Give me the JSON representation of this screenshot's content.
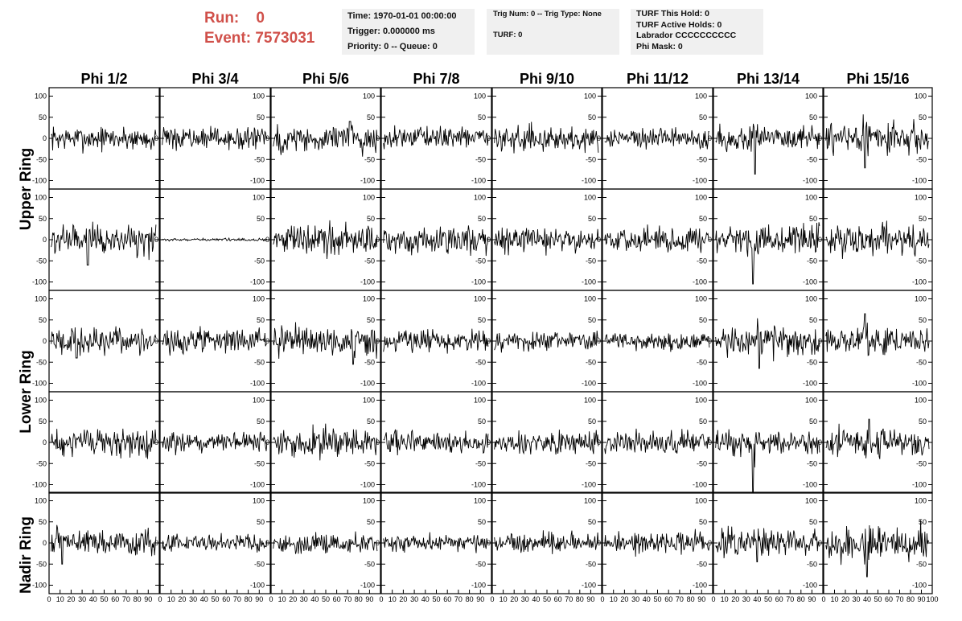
{
  "header": {
    "run_label": "Run:",
    "run_value": "0",
    "event_label": "Event:",
    "event_value": "7573031",
    "time_line": "Time: 1970-01-01 00:00:00",
    "trigger_line": "Trigger: 0.000000 ms",
    "priority_line": "Priority: 0 -- Queue: 0",
    "trig_line": "Trig Num: 0 -- Trig Type: None",
    "turf_line": "TURF: 0",
    "turf_this_hold": "TURF This Hold: 0",
    "turf_active_holds": "TURF Active Holds: 0",
    "labrador": "Labrador CCCCCCCCCC",
    "phi_mask": "Phi Mask: 0"
  },
  "colors": {
    "title": "#d0504a",
    "box_bg": "#f0f0f0",
    "trace": "#000000"
  },
  "chart_data": {
    "type": "line",
    "column_headers": [
      "Phi 1/2",
      "Phi 3/4",
      "Phi 5/6",
      "Phi 7/8",
      "Phi 9/10",
      "Phi 11/12",
      "Phi 13/14",
      "Phi 15/16"
    ],
    "row_labels": [
      "Upper Ring",
      "Lower Ring",
      "Nadir Ring"
    ],
    "ylim": [
      -120,
      120
    ],
    "yticks": [
      -100,
      -50,
      0,
      50,
      100
    ],
    "xlim": [
      0,
      100
    ],
    "xtick_labels": [
      "0",
      "10",
      "20",
      "30",
      "40",
      "50",
      "60",
      "70",
      "80",
      "90",
      "100"
    ],
    "panels": [
      [
        {
          "amp": 14,
          "peak": null,
          "peak_x": null
        },
        {
          "amp": 12,
          "peak": null,
          "peak_x": null
        },
        {
          "amp": 17,
          "peak": 40,
          "peak_x": 72
        },
        {
          "amp": 12,
          "peak": null,
          "peak_x": null
        },
        {
          "amp": 14,
          "peak": null,
          "peak_x": null
        },
        {
          "amp": 12,
          "peak": null,
          "peak_x": null
        },
        {
          "amp": 14,
          "peak": -85,
          "peak_x": 38
        },
        {
          "amp": 18,
          "peak": -70,
          "peak_x": 38
        }
      ],
      [
        {
          "amp": 18,
          "peak": -60,
          "peak_x": 35
        },
        {
          "amp": 1.5,
          "peak": null,
          "peak_x": null
        },
        {
          "amp": 18,
          "peak": null,
          "peak_x": null
        },
        {
          "amp": 16,
          "peak": null,
          "peak_x": null
        },
        {
          "amp": 14,
          "peak": null,
          "peak_x": null
        },
        {
          "amp": 14,
          "peak": null,
          "peak_x": null
        },
        {
          "amp": 16,
          "peak": -105,
          "peak_x": 36
        },
        {
          "amp": 18,
          "peak": null,
          "peak_x": null
        }
      ],
      [
        {
          "amp": 15,
          "peak": -40,
          "peak_x": 25
        },
        {
          "amp": 14,
          "peak": null,
          "peak_x": null
        },
        {
          "amp": 17,
          "peak": -55,
          "peak_x": 75
        },
        {
          "amp": 13,
          "peak": null,
          "peak_x": null
        },
        {
          "amp": 12,
          "peak": null,
          "peak_x": null
        },
        {
          "amp": 10,
          "peak": null,
          "peak_x": null
        },
        {
          "amp": 17,
          "peak": -65,
          "peak_x": 42
        },
        {
          "amp": 16,
          "peak": 65,
          "peak_x": 38
        }
      ],
      [
        {
          "amp": 16,
          "peak": null,
          "peak_x": null
        },
        {
          "amp": 12,
          "peak": null,
          "peak_x": null
        },
        {
          "amp": 16,
          "peak": null,
          "peak_x": null
        },
        {
          "amp": 13,
          "peak": null,
          "peak_x": null
        },
        {
          "amp": 13,
          "peak": null,
          "peak_x": null
        },
        {
          "amp": 13,
          "peak": null,
          "peak_x": null
        },
        {
          "amp": 14,
          "peak": -118,
          "peak_x": 36
        },
        {
          "amp": 16,
          "peak": 55,
          "peak_x": 42
        }
      ],
      [
        {
          "amp": 14,
          "peak": -50,
          "peak_x": 12
        },
        {
          "amp": 10,
          "peak": null,
          "peak_x": null
        },
        {
          "amp": 12,
          "peak": null,
          "peak_x": null
        },
        {
          "amp": 10,
          "peak": null,
          "peak_x": null
        },
        {
          "amp": 11,
          "peak": null,
          "peak_x": null
        },
        {
          "amp": 13,
          "peak": null,
          "peak_x": null
        },
        {
          "amp": 15,
          "peak": -45,
          "peak_x": 40
        },
        {
          "amp": 20,
          "peak": -80,
          "peak_x": 40
        }
      ]
    ]
  }
}
